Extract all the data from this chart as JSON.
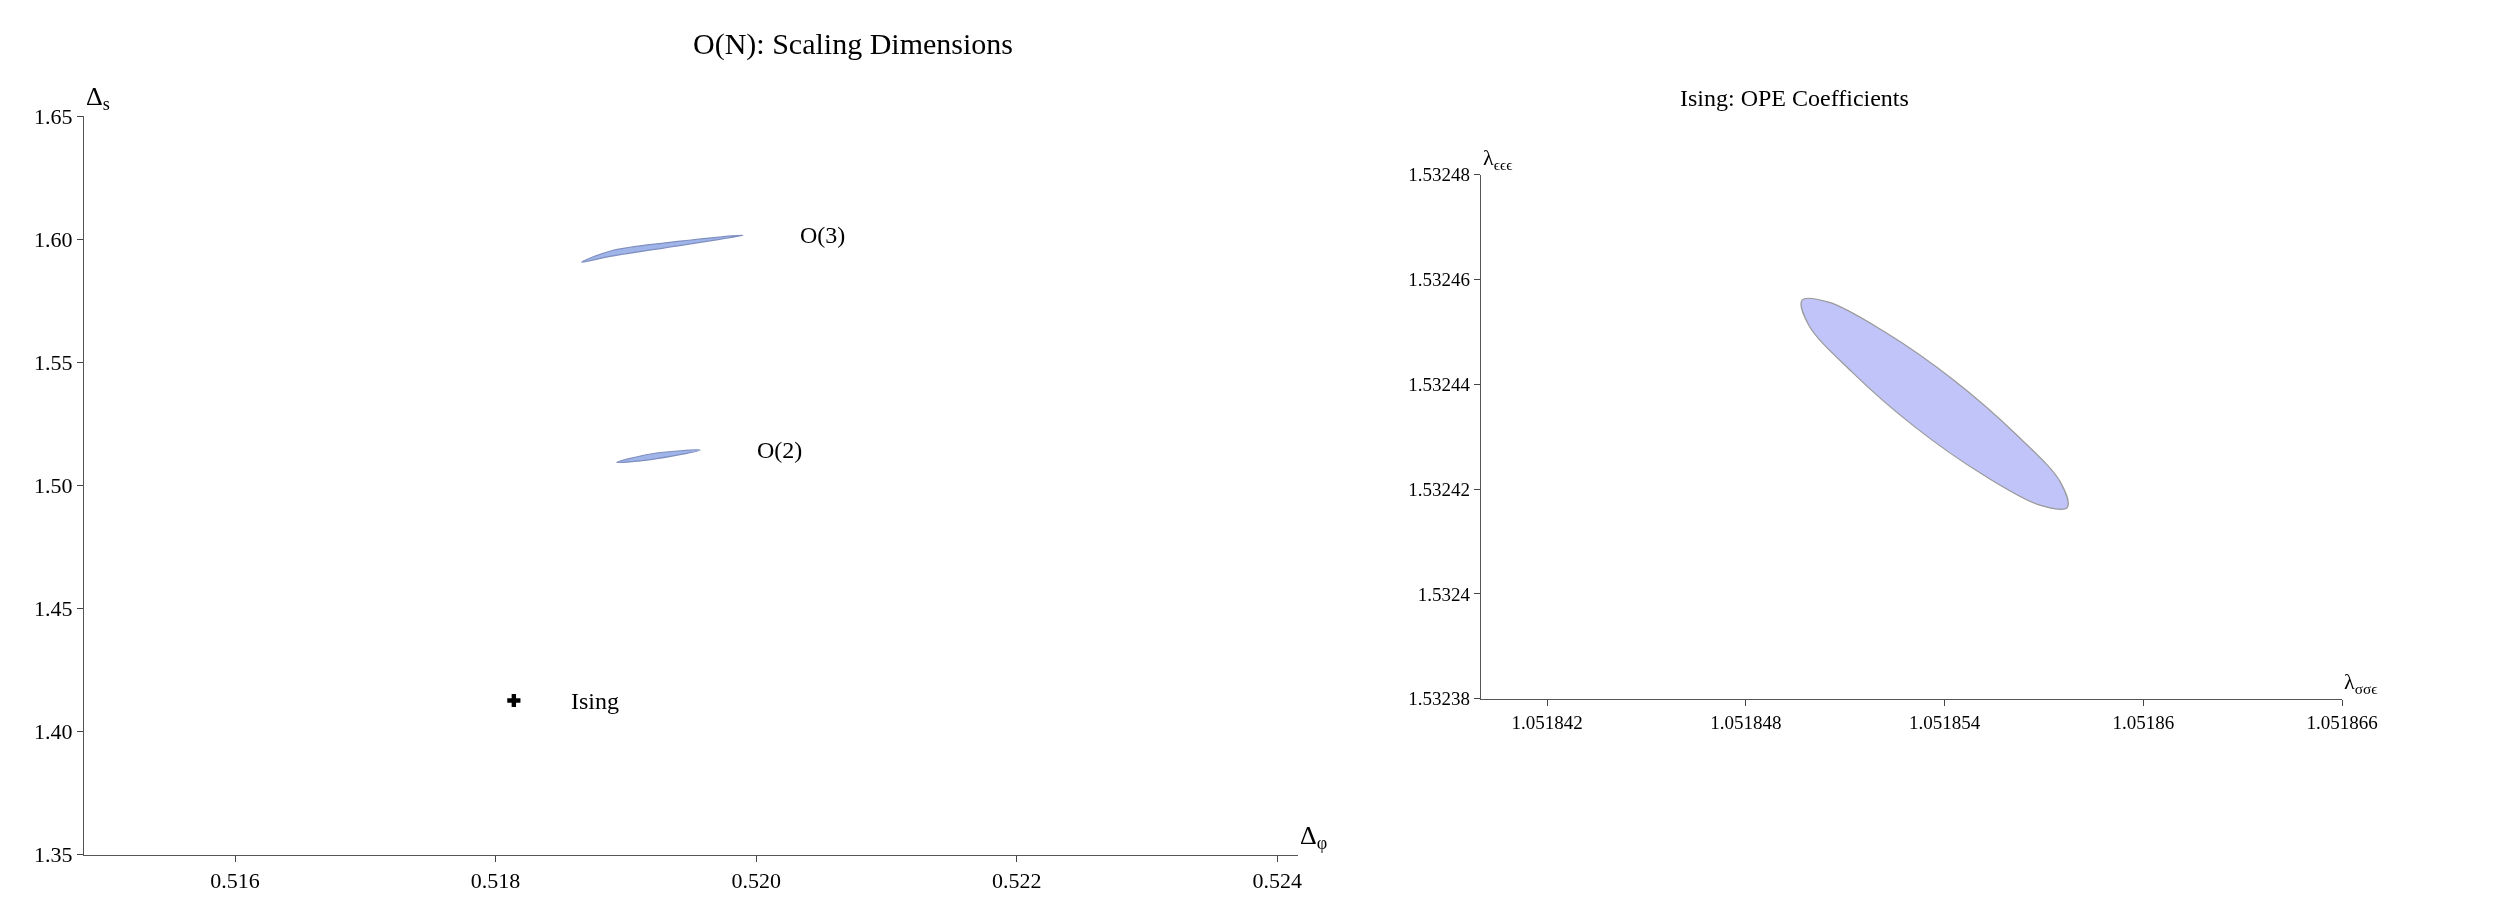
{
  "chart_data": [
    {
      "type": "area",
      "title": "O(N): Scaling Dimensions",
      "xlabel": "Δ$_{φ}$",
      "ylabel": "Δ$_{s}$",
      "xlim": [
        0.51484,
        0.52416
      ],
      "ylim": [
        1.35,
        1.65
      ],
      "xticks": [
        {
          "value": 0.516,
          "label": "0.516"
        },
        {
          "value": 0.518,
          "label": "0.518"
        },
        {
          "value": 0.52,
          "label": "0.520"
        },
        {
          "value": 0.522,
          "label": "0.522"
        },
        {
          "value": 0.524,
          "label": "0.524"
        }
      ],
      "yticks": [
        1.35,
        {
          "value": 1.4,
          "label": "1.40"
        },
        1.45,
        {
          "value": 1.5,
          "label": "1.50"
        },
        1.55,
        {
          "value": 1.6,
          "label": "1.60"
        },
        1.65
      ],
      "series": [
        {
          "color": "#9fb4e8",
          "x": [
            0.51866,
            0.51889,
            0.51932,
            0.5199,
            0.51932,
            0.51889,
            0.51866
          ],
          "values": [
            1.5908,
            1.5954,
            1.5987,
            1.6017,
            1.5968,
            1.5932,
            1.5908
          ]
        },
        {
          "color": "#9fb4e8",
          "x": [
            0.51893,
            0.51919,
            0.51957,
            0.51919,
            0.51893
          ],
          "values": [
            1.5094,
            1.5128,
            1.5144,
            1.5105,
            1.5094
          ]
        },
        {
          "type": "scatter",
          "color": "#000000",
          "marker": "cross",
          "x": [
            0.51814
          ],
          "values": [
            1.4126
          ]
        }
      ],
      "annotations": [
        "O(3)",
        "O(2)",
        "Ising"
      ]
    },
    {
      "type": "area",
      "title": "Ising: OPE Coefficients",
      "xlabel": "λ$_{σσϵ}$",
      "ylabel": "λ$_{ϵϵϵ}$",
      "xlim": [
        1.05184,
        1.051866
      ],
      "ylim": [
        1.53238,
        1.53248
      ],
      "xticks": [
        1.051842,
        1.051848,
        1.051854,
        1.05186,
        1.051866
      ],
      "yticks": [
        1.53238,
        1.5324,
        1.53242,
        1.53244,
        1.53246,
        1.53248
      ],
      "series": [
        {
          "color": "#c0c4f8",
          "x": [
            1.0518577,
            1.0518575,
            1.0518562,
            1.0518543,
            1.0518522,
            1.0518505,
            1.0518497,
            1.0518499,
            1.0518512,
            1.0518531,
            1.0518552,
            1.0518569,
            1.0518577
          ],
          "values": [
            1.5324165,
            1.5324213,
            1.5324302,
            1.5324407,
            1.53245,
            1.5324557,
            1.5324561,
            1.5324513,
            1.5324424,
            1.5324319,
            1.5324226,
            1.5324169,
            1.5324165
          ]
        }
      ]
    }
  ]
}
